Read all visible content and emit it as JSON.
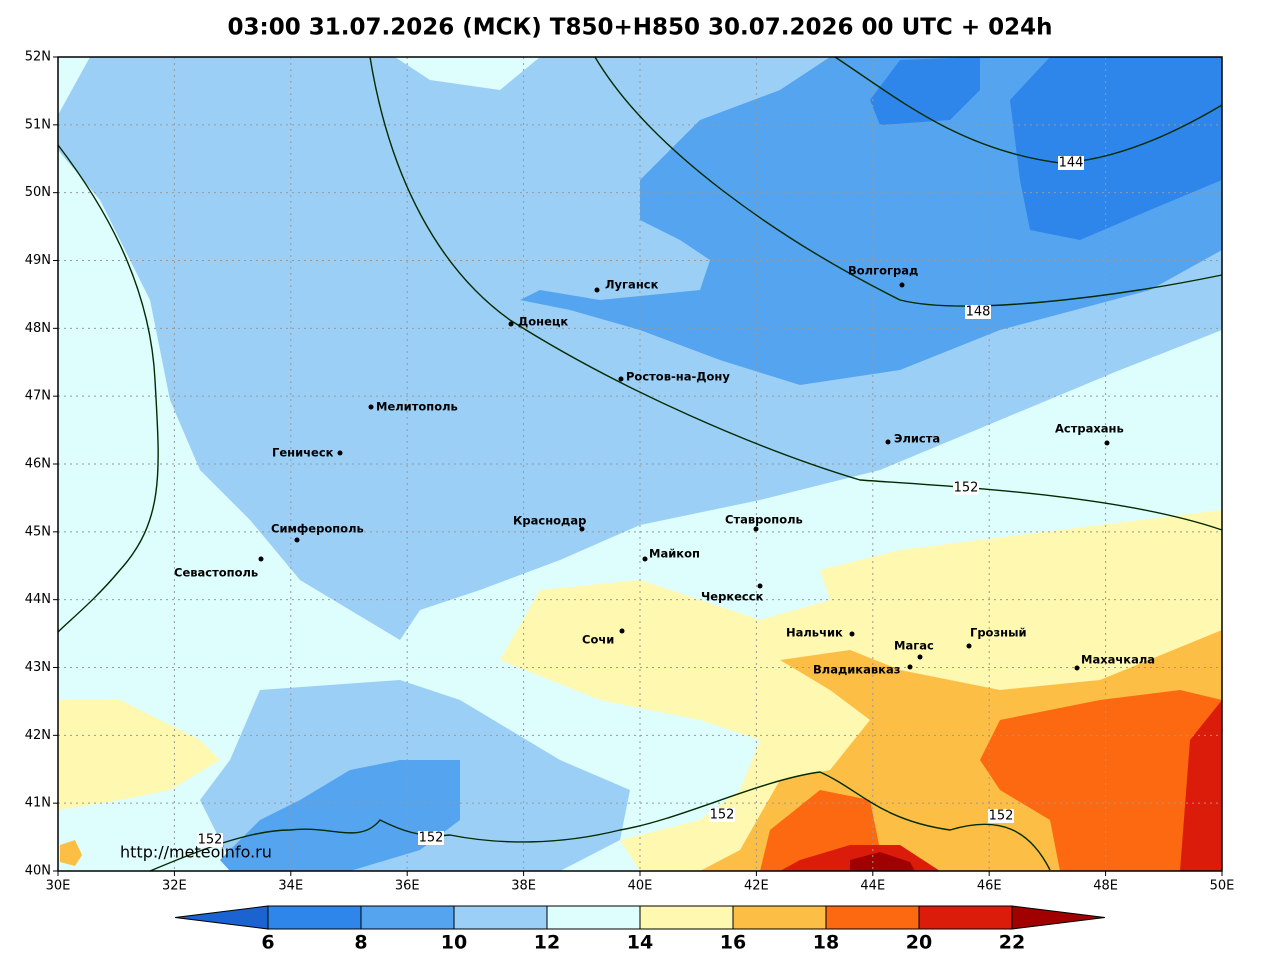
{
  "title": "03:00 31.07.2026 (МСК) T850+H850 30.07.2026 00 UTC + 024h",
  "map": {
    "lon_ticks": [
      {
        "value": 30,
        "label": "30E"
      },
      {
        "value": 32,
        "label": "32E"
      },
      {
        "value": 34,
        "label": "34E"
      },
      {
        "value": 36,
        "label": "36E"
      },
      {
        "value": 38,
        "label": "38E"
      },
      {
        "value": 40,
        "label": "40E"
      },
      {
        "value": 42,
        "label": "42E"
      },
      {
        "value": 44,
        "label": "44E"
      },
      {
        "value": 46,
        "label": "46E"
      },
      {
        "value": 48,
        "label": "48E"
      },
      {
        "value": 50,
        "label": "50E"
      }
    ],
    "lat_ticks": [
      {
        "value": 40,
        "label": "40N"
      },
      {
        "value": 41,
        "label": "41N"
      },
      {
        "value": 42,
        "label": "42N"
      },
      {
        "value": 43,
        "label": "43N"
      },
      {
        "value": 44,
        "label": "44N"
      },
      {
        "value": 45,
        "label": "45N"
      },
      {
        "value": 46,
        "label": "46N"
      },
      {
        "value": 47,
        "label": "47N"
      },
      {
        "value": 48,
        "label": "48N"
      },
      {
        "value": 49,
        "label": "49N"
      },
      {
        "value": 50,
        "label": "50N"
      },
      {
        "value": 51,
        "label": "51N"
      },
      {
        "value": 52,
        "label": "52N"
      }
    ],
    "cities": [
      "Луганск",
      "Донецк",
      "Волгоград",
      "Ростов-на-Дону",
      "Мелитополь",
      "Элиста",
      "Астрахань",
      "Геническ",
      "Краснодар",
      "Ставрополь",
      "Симферополь",
      "Майкоп",
      "Севастополь",
      "Черкесск",
      "Сочи",
      "Нальчик",
      "Грозный",
      "Магас",
      "Владикавказ",
      "Махачкала"
    ],
    "contour_labels": [
      "144",
      "148",
      "152",
      "152",
      "152",
      "152",
      "152"
    ],
    "credit": "http://meteoinfo.ru"
  },
  "colorbar": {
    "ticks": [
      6,
      8,
      10,
      12,
      14,
      16,
      18,
      20,
      22
    ],
    "colors": [
      "#1a63d0",
      "#2f86ea",
      "#55a4f0",
      "#9ccff6",
      "#defdfd",
      "#fff8b0",
      "#fdbe45",
      "#fd6910",
      "#dc1c0b",
      "#a00000"
    ]
  }
}
